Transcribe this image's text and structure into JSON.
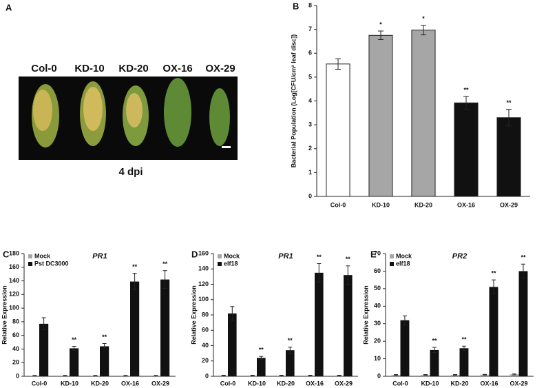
{
  "photo_panel": {
    "panel_label": "A",
    "lines": [
      "Col-0",
      "KD-10",
      "KD-20",
      "OX-16",
      "OX-29"
    ],
    "caption": "4 dpi"
  },
  "chart_data": [
    {
      "type": "bar",
      "panel_label": "B",
      "y_label": "Bacterial Population (Log[CFU/cm² leaf disc])",
      "categories": [
        "Col-0",
        "KD-10",
        "KD-20",
        "OX-16",
        "OX-29"
      ],
      "values": [
        5.55,
        6.75,
        6.97,
        3.92,
        3.3
      ],
      "errors": [
        0.22,
        0.18,
        0.2,
        0.27,
        0.35
      ],
      "colors": [
        "#ffffff",
        "#a6a6a6",
        "#a6a6a6",
        "#111111",
        "#111111"
      ],
      "annotations": [
        null,
        "*",
        "*",
        "**",
        "**"
      ],
      "ylim": [
        0,
        8
      ],
      "yticks": [
        0,
        1,
        2,
        3,
        4,
        5,
        6,
        7,
        8
      ]
    },
    {
      "type": "grouped_bar",
      "panel_label": "C",
      "title": "PR1",
      "y_label": "Relative Expression",
      "categories": [
        "Col-0",
        "KD-10",
        "KD-20",
        "OX-16",
        "OX-29"
      ],
      "series": [
        {
          "name": "Mock",
          "color": "#a6a6a6",
          "values": [
            1,
            1,
            1,
            1,
            1
          ],
          "errors": [
            0.3,
            0.3,
            0.3,
            0.3,
            0.3
          ]
        },
        {
          "name": "Pst DC3000",
          "color": "#111111",
          "values": [
            77,
            41,
            44,
            139,
            142
          ],
          "errors": [
            9,
            3,
            4,
            12,
            13
          ]
        }
      ],
      "annotations": [
        null,
        "**",
        "**",
        "**",
        "**"
      ],
      "ylim": [
        0,
        180
      ],
      "yticks": [
        0,
        20,
        40,
        60,
        80,
        100,
        120,
        140,
        160,
        180
      ]
    },
    {
      "type": "grouped_bar",
      "panel_label": "D",
      "title": "PR1",
      "y_label": "Relative Expression",
      "categories": [
        "Col-0",
        "KD-10",
        "KD-20",
        "OX-16",
        "OX-29"
      ],
      "series": [
        {
          "name": "Mock",
          "color": "#a6a6a6",
          "values": [
            1,
            1,
            1,
            1,
            1
          ],
          "errors": [
            0.3,
            0.3,
            0.3,
            0.3,
            0.3
          ]
        },
        {
          "name": "elf18",
          "color": "#111111",
          "values": [
            82,
            24,
            34,
            135,
            132
          ],
          "errors": [
            9,
            2,
            4,
            12,
            12
          ]
        }
      ],
      "annotations": [
        null,
        "**",
        "**",
        "**",
        "**"
      ],
      "ylim": [
        0,
        160
      ],
      "yticks": [
        0,
        20,
        40,
        60,
        80,
        100,
        120,
        140,
        160
      ]
    },
    {
      "type": "grouped_bar",
      "panel_label": "E",
      "title": "PR2",
      "y_label": "Relative Expression",
      "categories": [
        "Col-0",
        "KD-10",
        "KD-20",
        "OX-16",
        "OX-29"
      ],
      "series": [
        {
          "name": "Mock",
          "color": "#a6a6a6",
          "values": [
            0.8,
            0.8,
            0.8,
            0.9,
            1.1
          ],
          "errors": [
            0.2,
            0.2,
            0.2,
            0.2,
            0.3
          ]
        },
        {
          "name": "elf18",
          "color": "#111111",
          "values": [
            32,
            15,
            16,
            51,
            60
          ],
          "errors": [
            2.5,
            1.5,
            1.2,
            4,
            4
          ]
        }
      ],
      "annotations": [
        null,
        "**",
        "**",
        "**",
        "**"
      ],
      "ylim": [
        0,
        70
      ],
      "yticks": [
        0,
        10,
        20,
        30,
        40,
        50,
        60,
        70
      ]
    }
  ]
}
